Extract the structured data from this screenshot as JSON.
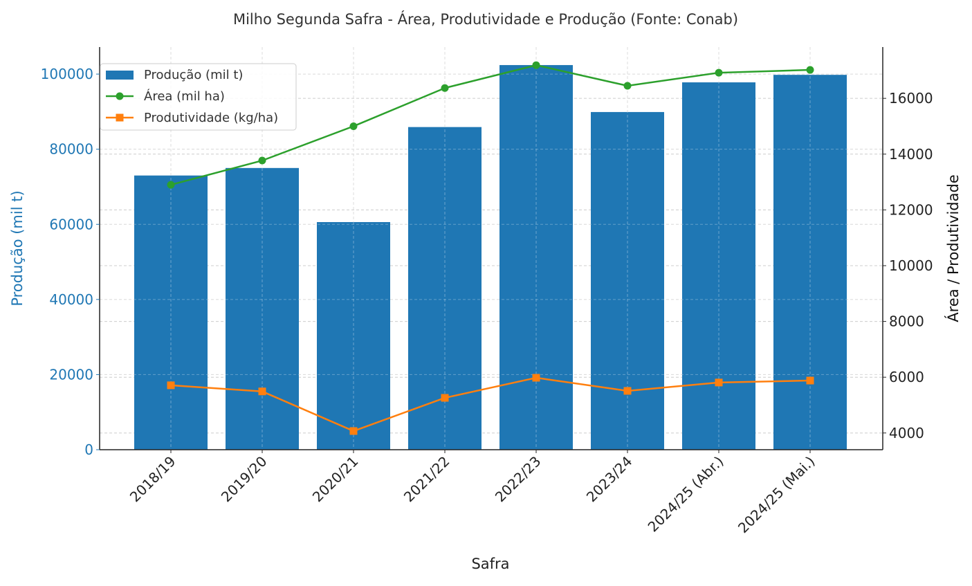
{
  "chart_data": {
    "type": "bar+line",
    "title": "Milho Segunda Safra - Área, Produtividade e Produção (Fonte: Conab)",
    "xlabel": "Safra",
    "ylabel_left": "Produção (mil t)",
    "ylabel_right": "Área / Produtividade",
    "categories": [
      "2018/19",
      "2019/20",
      "2020/21",
      "2021/22",
      "2022/23",
      "2023/24",
      "2024/25 (Abr.)",
      "2024/25 (Mai.)"
    ],
    "ylim_left": [
      0,
      107200
    ],
    "ylim_right": [
      3400,
      17840
    ],
    "yticks_left": [
      0,
      20000,
      40000,
      60000,
      80000,
      100000
    ],
    "yticks_right": [
      4000,
      6000,
      8000,
      10000,
      12000,
      14000,
      16000
    ],
    "grid": true,
    "legend_position": "top-left",
    "series": [
      {
        "name": "Produção (mil t)",
        "type": "bar",
        "axis": "left",
        "color": "#1f77b4",
        "values": [
          73000,
          75000,
          60600,
          85900,
          102400,
          89900,
          97800,
          99800
        ]
      },
      {
        "name": "Área (mil ha)",
        "type": "line",
        "marker": "circle",
        "axis": "right",
        "color": "#2ca02c",
        "values": [
          12900,
          13770,
          15000,
          16370,
          17190,
          16450,
          16920,
          17020
        ]
      },
      {
        "name": "Produtividade (kg/ha)",
        "type": "line",
        "marker": "square",
        "axis": "right",
        "color": "#ff7f0e",
        "values": [
          5710,
          5490,
          4070,
          5260,
          5980,
          5510,
          5810,
          5880
        ]
      }
    ],
    "left_axis_color": "#1f77b4"
  }
}
